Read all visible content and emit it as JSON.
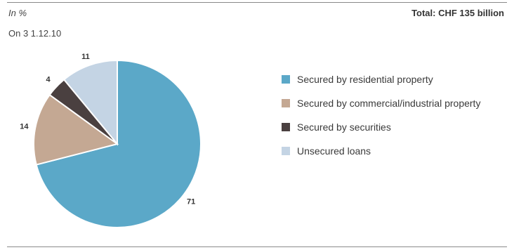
{
  "header": {
    "unit": "In %",
    "date": "On 3 1.12.10",
    "total": "Total: CHF 135 billion"
  },
  "chart_data": {
    "type": "pie",
    "categories": [
      "Secured by residential property",
      "Secured by commercial/industrial property",
      "Secured by securities",
      "Unsecured loans"
    ],
    "values": [
      71,
      14,
      4,
      11
    ],
    "data_labels": [
      "71",
      "14",
      "4",
      "11"
    ],
    "colors": [
      "#5ba8c8",
      "#c4a893",
      "#4a4040",
      "#c4d4e4"
    ],
    "start": "12 o'clock, clockwise",
    "legend_position": "right"
  }
}
